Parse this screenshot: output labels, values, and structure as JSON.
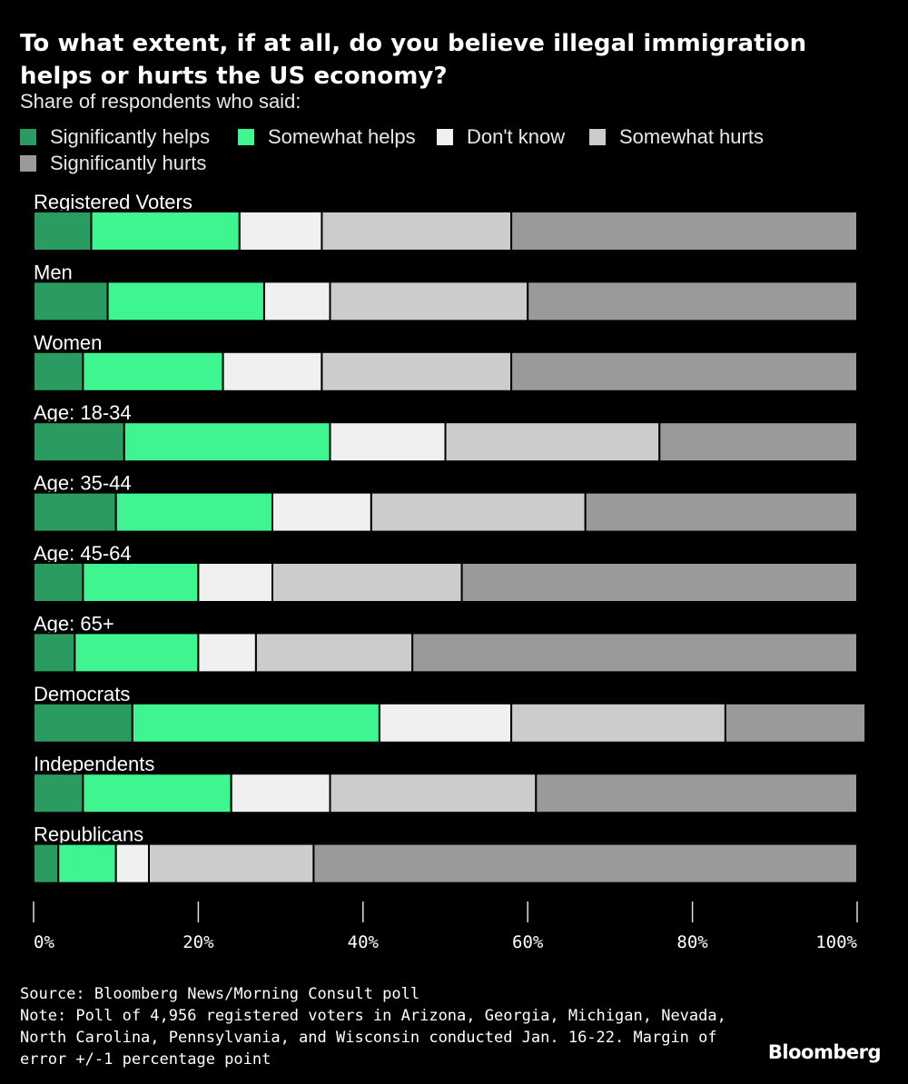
{
  "title": "To what extent, if at all, do you believe illegal immigration helps or hurts the US economy?",
  "subtitle": "Share of respondents who said:",
  "source": "Source: Bloomberg News/Morning Consult poll",
  "note": "Note: Poll of 4,956 registered voters in Arizona, Georgia, Michigan, Nevada, North Carolina, Pennsylvania, and Wisconsin conducted Jan. 16-22. Margin of error +/-1 percentage point",
  "brand": "Bloomberg",
  "colors": {
    "background": "#000000",
    "significantly_helps": "#2a9c62",
    "somewhat_helps": "#3ef590",
    "dont_know": "#f0f0f0",
    "somewhat_hurts": "#cccccc",
    "significantly_hurts": "#9a9a9a",
    "text": "#ffffff"
  },
  "chart_data": {
    "type": "bar",
    "orientation": "horizontal",
    "stacked": true,
    "title": "To what extent, if at all, do you believe illegal immigration helps or hurts the US economy?",
    "subtitle": "Share of respondents who said:",
    "xlabel": "",
    "ylabel": "",
    "xlim": [
      0,
      100
    ],
    "x_ticks": [
      0,
      20,
      40,
      60,
      80,
      100
    ],
    "x_tick_labels": [
      "0%",
      "20%",
      "40%",
      "60%",
      "80%",
      "100%"
    ],
    "legend_position": "top-left",
    "categories": [
      "Registered Voters",
      "Men",
      "Women",
      "Age: 18-34",
      "Age: 35-44",
      "Age: 45-64",
      "Age: 65+",
      "Democrats",
      "Independents",
      "Republicans"
    ],
    "series": [
      {
        "name": "Significantly helps",
        "color_key": "significantly_helps",
        "values": [
          7,
          9,
          6,
          11,
          10,
          6,
          5,
          12,
          6,
          3
        ]
      },
      {
        "name": "Somewhat helps",
        "color_key": "somewhat_helps",
        "values": [
          18,
          19,
          17,
          25,
          19,
          14,
          15,
          30,
          18,
          7
        ]
      },
      {
        "name": "Don't know",
        "color_key": "dont_know",
        "values": [
          10,
          8,
          12,
          14,
          12,
          9,
          7,
          16,
          12,
          4
        ]
      },
      {
        "name": "Somewhat hurts",
        "color_key": "somewhat_hurts",
        "values": [
          23,
          24,
          23,
          26,
          26,
          23,
          19,
          26,
          25,
          20
        ]
      },
      {
        "name": "Significantly hurts",
        "color_key": "significantly_hurts",
        "values": [
          42,
          40,
          42,
          24,
          33,
          48,
          54,
          17,
          39,
          66
        ]
      }
    ]
  }
}
